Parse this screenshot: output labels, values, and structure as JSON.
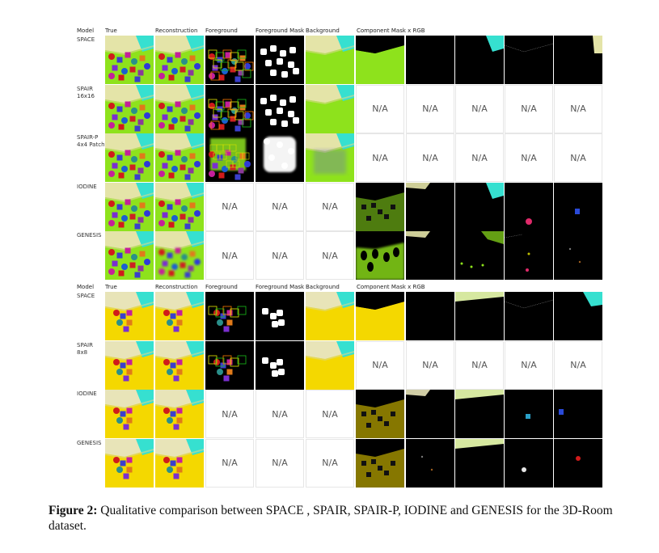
{
  "figure": {
    "column_headers": [
      "Model",
      "True",
      "Reconstruction",
      "Foreground",
      "Foreground Mask",
      "Background",
      "Component Mask x RGB"
    ],
    "na_label": "N/A",
    "panels": [
      {
        "theme": "green",
        "rows": [
          {
            "model": "SPACE",
            "cells": [
              "true",
              "recon",
              "fg",
              "mask",
              "bg",
              "comp-bg",
              "comp-black",
              "comp-cyan",
              "comp-edge",
              "comp-wall"
            ]
          },
          {
            "model": "SPAIR\n16x16",
            "cells": [
              "true",
              "recon",
              "fg",
              "mask",
              "bg",
              "na",
              "na",
              "na",
              "na",
              "na"
            ]
          },
          {
            "model": "SPAIR-P\n4x4 Patch",
            "cells": [
              "true",
              "recon",
              "fg-blur",
              "mask-blur",
              "bg-blur",
              "na",
              "na",
              "na",
              "na",
              "na"
            ]
          },
          {
            "model": "IODINE",
            "cells": [
              "true",
              "recon",
              "na",
              "na",
              "na",
              "comp-dark-objs",
              "comp-wall-dark",
              "comp-cyan",
              "comp-pink",
              "comp-blue"
            ]
          },
          {
            "model": "GENESIS",
            "cells": [
              "true",
              "recon-blur",
              "na",
              "na",
              "na",
              "comp-blobs",
              "comp-wall-dark",
              "comp-floor-bits",
              "comp-edge-dots",
              "comp-dots"
            ]
          }
        ]
      },
      {
        "theme": "yellow",
        "rows": [
          {
            "model": "SPACE",
            "cells": [
              "true",
              "recon",
              "fg",
              "mask",
              "bg",
              "comp-bg",
              "comp-black",
              "comp-floor-top",
              "comp-edge",
              "comp-cyan-right"
            ]
          },
          {
            "model": "SPAIR\n8x8",
            "cells": [
              "true",
              "recon",
              "fg",
              "mask",
              "bg",
              "na",
              "na",
              "na",
              "na",
              "na"
            ]
          },
          {
            "model": "IODINE",
            "cells": [
              "true",
              "recon",
              "na",
              "na",
              "na",
              "comp-dark-objs",
              "comp-wall-dark",
              "comp-floor-top",
              "comp-cyan-obj",
              "comp-blue-obj"
            ]
          },
          {
            "model": "GENESIS",
            "cells": [
              "true",
              "recon",
              "na",
              "na",
              "na",
              "comp-dark-objs",
              "comp-dots",
              "comp-floor-top",
              "comp-white-obj",
              "comp-red-obj"
            ]
          }
        ]
      }
    ],
    "colors": {
      "green_floor": "#8ee21c",
      "green_wall": "#e4e4a8",
      "cyan_wall": "#36e0d0",
      "yellow_floor": "#f4d800",
      "yellow_wall": "#e8e4b8",
      "black": "#000000"
    }
  },
  "caption": {
    "label": "Figure 2:",
    "text": "Qualitative comparison between SPACE , SPAIR, SPAIR-P, IODINE and GENESIS for the 3D-Room dataset."
  }
}
